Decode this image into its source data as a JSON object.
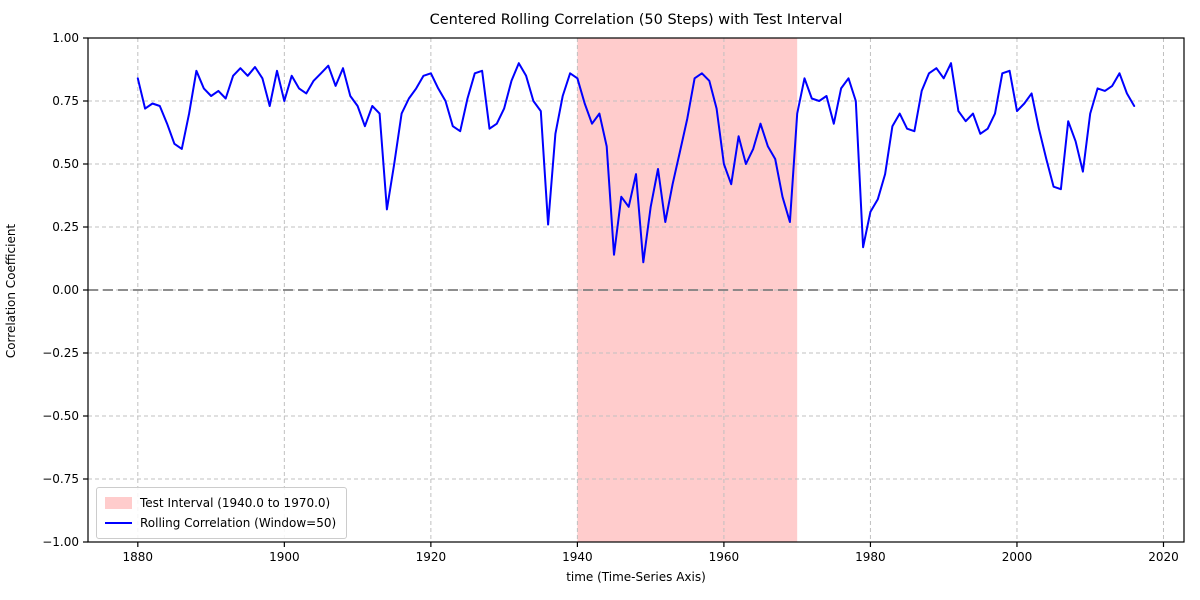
{
  "chart": {
    "title": "Centered Rolling Correlation (50 Steps) with Test Interval",
    "xlabel": "time (Time-Series Axis)",
    "ylabel": "Correlation Coefficient"
  },
  "legend": {
    "test_interval_label": "Test Interval (1940.0 to 1970.0)",
    "rolling_corr_label": "Rolling Correlation (Window=50)"
  },
  "colors": {
    "line": "#0000ff",
    "band_fill": "rgba(255,0,0,0.2)",
    "zero_line": "#7f7f7f",
    "grid": "#c0c0c0",
    "spine": "#000000",
    "tick_text": "#000000",
    "legend_border": "#cccccc"
  },
  "chart_data": {
    "type": "line",
    "title": "Centered Rolling Correlation (50 Steps) with Test Interval",
    "xlabel": "time (Time-Series Axis)",
    "ylabel": "Correlation Coefficient",
    "xlim": [
      1873.2,
      2022.8
    ],
    "ylim": [
      -1.0,
      1.0
    ],
    "x_ticks": [
      1880,
      1900,
      1920,
      1940,
      1960,
      1980,
      2000,
      2020
    ],
    "y_ticks": [
      -1.0,
      -0.75,
      -0.5,
      -0.25,
      0.0,
      0.25,
      0.5,
      0.75,
      1.0
    ],
    "y_tick_labels": [
      "−1.00",
      "−0.75",
      "−0.50",
      "−0.25",
      "0.00",
      "0.25",
      "0.50",
      "0.75",
      "1.00"
    ],
    "grid": true,
    "legend_position": "lower left",
    "zero_line_y": 0.0,
    "test_interval": {
      "start": 1940.0,
      "end": 1970.0,
      "label": "Test Interval (1940.0 to 1970.0)"
    },
    "series": [
      {
        "name": "Rolling Correlation (Window=50)",
        "x": [
          1880,
          1881,
          1882,
          1883,
          1884,
          1885,
          1886,
          1887,
          1888,
          1889,
          1890,
          1891,
          1892,
          1893,
          1894,
          1895,
          1896,
          1897,
          1898,
          1899,
          1900,
          1901,
          1902,
          1903,
          1904,
          1905,
          1906,
          1907,
          1908,
          1909,
          1910,
          1911,
          1912,
          1913,
          1914,
          1915,
          1916,
          1917,
          1918,
          1919,
          1920,
          1921,
          1922,
          1923,
          1924,
          1925,
          1926,
          1927,
          1928,
          1929,
          1930,
          1931,
          1932,
          1933,
          1934,
          1935,
          1936,
          1937,
          1938,
          1939,
          1940,
          1941,
          1942,
          1943,
          1944,
          1945,
          1946,
          1947,
          1948,
          1949,
          1950,
          1951,
          1952,
          1953,
          1954,
          1955,
          1956,
          1957,
          1958,
          1959,
          1960,
          1961,
          1962,
          1963,
          1964,
          1965,
          1966,
          1967,
          1968,
          1969,
          1970,
          1971,
          1972,
          1973,
          1974,
          1975,
          1976,
          1977,
          1978,
          1979,
          1980,
          1981,
          1982,
          1983,
          1984,
          1985,
          1986,
          1987,
          1988,
          1989,
          1990,
          1991,
          1992,
          1993,
          1994,
          1995,
          1996,
          1997,
          1998,
          1999,
          2000,
          2001,
          2002,
          2003,
          2004,
          2005,
          2006,
          2007,
          2008,
          2009,
          2010,
          2011,
          2012,
          2013,
          2014,
          2015,
          2016
        ],
        "values": [
          0.84,
          0.72,
          0.74,
          0.73,
          0.66,
          0.58,
          0.56,
          0.7,
          0.87,
          0.8,
          0.77,
          0.79,
          0.76,
          0.85,
          0.88,
          0.85,
          0.885,
          0.84,
          0.73,
          0.87,
          0.75,
          0.85,
          0.8,
          0.78,
          0.83,
          0.86,
          0.89,
          0.81,
          0.88,
          0.77,
          0.73,
          0.65,
          0.73,
          0.7,
          0.32,
          0.5,
          0.7,
          0.76,
          0.8,
          0.85,
          0.86,
          0.8,
          0.75,
          0.65,
          0.63,
          0.76,
          0.86,
          0.87,
          0.64,
          0.66,
          0.72,
          0.83,
          0.9,
          0.85,
          0.75,
          0.71,
          0.26,
          0.62,
          0.77,
          0.86,
          0.84,
          0.74,
          0.66,
          0.7,
          0.57,
          0.14,
          0.37,
          0.33,
          0.46,
          0.11,
          0.33,
          0.48,
          0.27,
          0.42,
          0.55,
          0.68,
          0.84,
          0.86,
          0.83,
          0.72,
          0.5,
          0.42,
          0.61,
          0.5,
          0.56,
          0.66,
          0.57,
          0.52,
          0.37,
          0.27,
          0.7,
          0.84,
          0.76,
          0.75,
          0.77,
          0.66,
          0.8,
          0.84,
          0.75,
          0.17,
          0.31,
          0.36,
          0.46,
          0.65,
          0.7,
          0.64,
          0.63,
          0.79,
          0.86,
          0.88,
          0.84,
          0.9,
          0.71,
          0.67,
          0.7,
          0.62,
          0.64,
          0.7,
          0.86,
          0.87,
          0.71,
          0.74,
          0.78,
          0.64,
          0.52,
          0.41,
          0.4,
          0.67,
          0.59,
          0.47,
          0.7,
          0.8,
          0.79,
          0.81,
          0.86,
          0.78,
          0.73
        ]
      }
    ]
  }
}
